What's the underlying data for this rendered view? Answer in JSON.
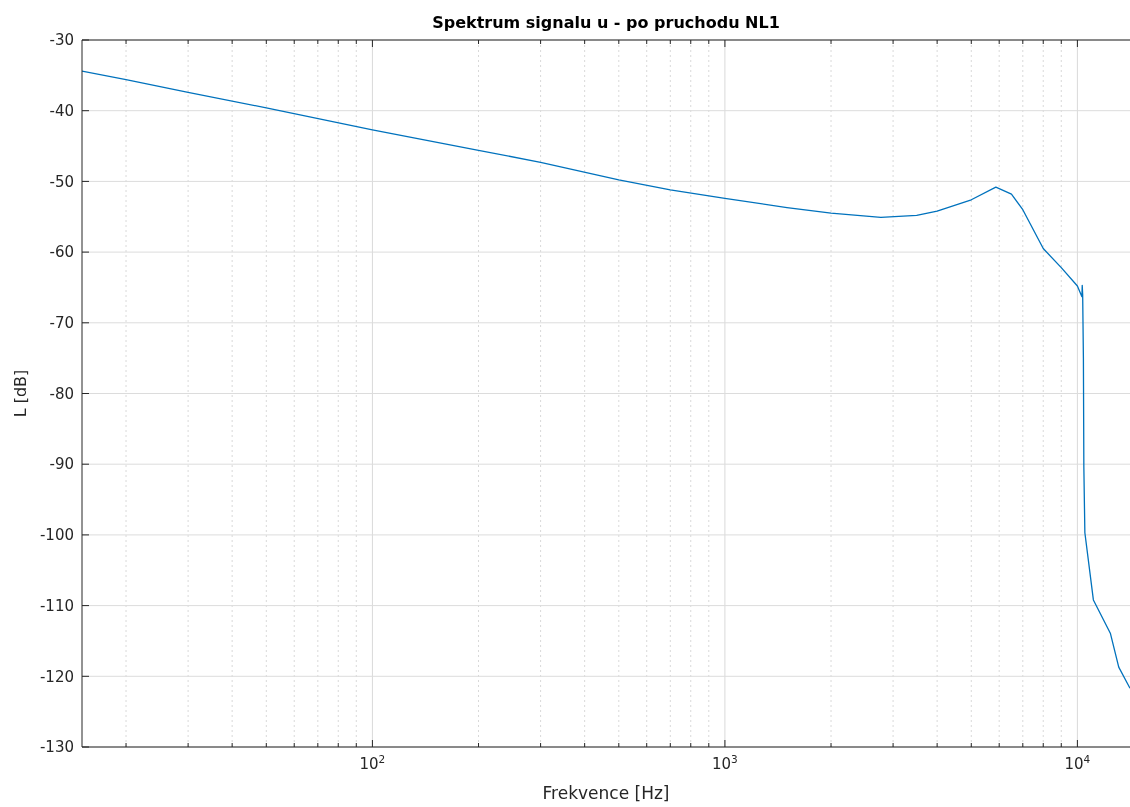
{
  "chart_data": {
    "type": "line",
    "title": "Spektrum signalu u - po pruchodu NL1",
    "xlabel": "Frekvence [Hz]",
    "ylabel": "L [dB]",
    "log": "x",
    "grid": true,
    "xlim": [
      15,
      14100
    ],
    "ylim": [
      -130,
      -30
    ],
    "xticks": [
      {
        "value": 20,
        "label": null
      },
      {
        "value": 30,
        "label": null
      },
      {
        "value": 40,
        "label": null
      },
      {
        "value": 50,
        "label": null
      },
      {
        "value": 60,
        "label": null
      },
      {
        "value": 70,
        "label": null
      },
      {
        "value": 80,
        "label": null
      },
      {
        "value": 90,
        "label": null
      },
      {
        "value": 100,
        "label": "10$^{2}$"
      },
      {
        "value": 200,
        "label": null
      },
      {
        "value": 300,
        "label": null
      },
      {
        "value": 400,
        "label": null
      },
      {
        "value": 500,
        "label": null
      },
      {
        "value": 600,
        "label": null
      },
      {
        "value": 700,
        "label": null
      },
      {
        "value": 800,
        "label": null
      },
      {
        "value": 900,
        "label": null
      },
      {
        "value": 1000,
        "label": "10$^{3}$"
      },
      {
        "value": 2000,
        "label": null
      },
      {
        "value": 3000,
        "label": null
      },
      {
        "value": 4000,
        "label": null
      },
      {
        "value": 5000,
        "label": null
      },
      {
        "value": 6000,
        "label": null
      },
      {
        "value": 7000,
        "label": null
      },
      {
        "value": 8000,
        "label": null
      },
      {
        "value": 9000,
        "label": null
      },
      {
        "value": 10000,
        "label": "10$^{4}$"
      }
    ],
    "yticks": [
      -130,
      -120,
      -110,
      -100,
      -90,
      -80,
      -70,
      -60,
      -50,
      -40,
      -30
    ],
    "x": [
      15,
      20,
      30,
      50,
      100,
      200,
      300,
      500,
      700,
      1000,
      1500,
      2000,
      2770,
      3500,
      4000,
      5000,
      5870,
      6500,
      7000,
      8000,
      9000,
      10000,
      10300,
      10320,
      10350,
      10400,
      10430,
      10500,
      11100,
      12400,
      13100,
      14100
    ],
    "series": [
      {
        "color": "#0072bd",
        "values": [
          -34.4,
          -35.6,
          -37.4,
          -39.6,
          -42.7,
          -45.6,
          -47.3,
          -49.8,
          -51.2,
          -52.4,
          -53.7,
          -54.5,
          -55.1,
          -54.8,
          -54.2,
          -52.6,
          -50.8,
          -51.8,
          -54.0,
          -59.5,
          -62.2,
          -64.8,
          -66.3,
          -64.7,
          -66.0,
          -75.0,
          -90.4,
          -99.7,
          -109.2,
          -113.9,
          -118.7,
          -121.7
        ]
      }
    ]
  }
}
